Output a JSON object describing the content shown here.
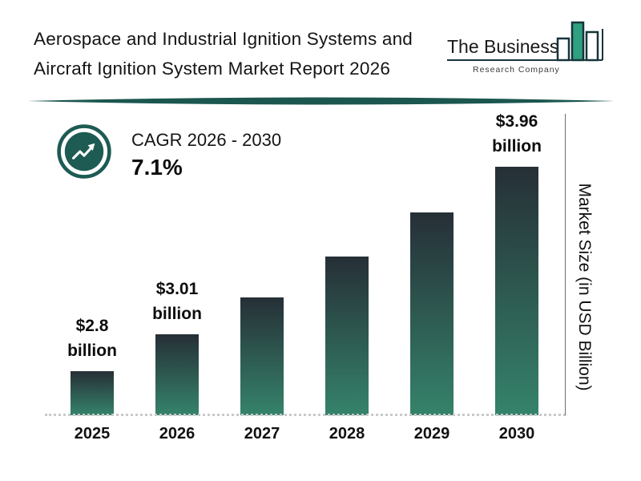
{
  "header": {
    "title_line1": "Aerospace and Industrial Ignition Systems and",
    "title_line2": "Aircraft Ignition System Market Report 2026",
    "logo": {
      "name_line": "The Business",
      "subtitle_line": "Research Company"
    }
  },
  "cagr": {
    "label": "CAGR 2026 - 2030",
    "value": "7.1%"
  },
  "chart_data": {
    "type": "bar",
    "title": "Aerospace and Industrial Ignition Systems and Aircraft Ignition System Market Report 2026",
    "categories": [
      "2025",
      "2026",
      "2027",
      "2028",
      "2029",
      "2030"
    ],
    "values": [
      2.8,
      3.01,
      3.22,
      3.45,
      3.7,
      3.96
    ],
    "unit": "USD Billion",
    "ylabel": "Market Size (in USD Billion)",
    "xlabel": "",
    "ylim": [
      2.55,
      4.05
    ],
    "grid": false,
    "legend": false,
    "data_labels": [
      {
        "category": "2025",
        "line1": "$2.8",
        "line2": "billion"
      },
      {
        "category": "2026",
        "line1": "$3.01",
        "line2": "billion"
      },
      {
        "category": "2030",
        "line1": "$3.96",
        "line2": "billion"
      }
    ],
    "annotation": "CAGR 2026 - 2030: 7.1%"
  },
  "colors": {
    "accent_teal": "#1d5b53",
    "bar_gradient_top": "#262f36",
    "bar_gradient_bottom": "#35836b",
    "logo_green": "#2fa080",
    "divider": "#1b564f"
  }
}
